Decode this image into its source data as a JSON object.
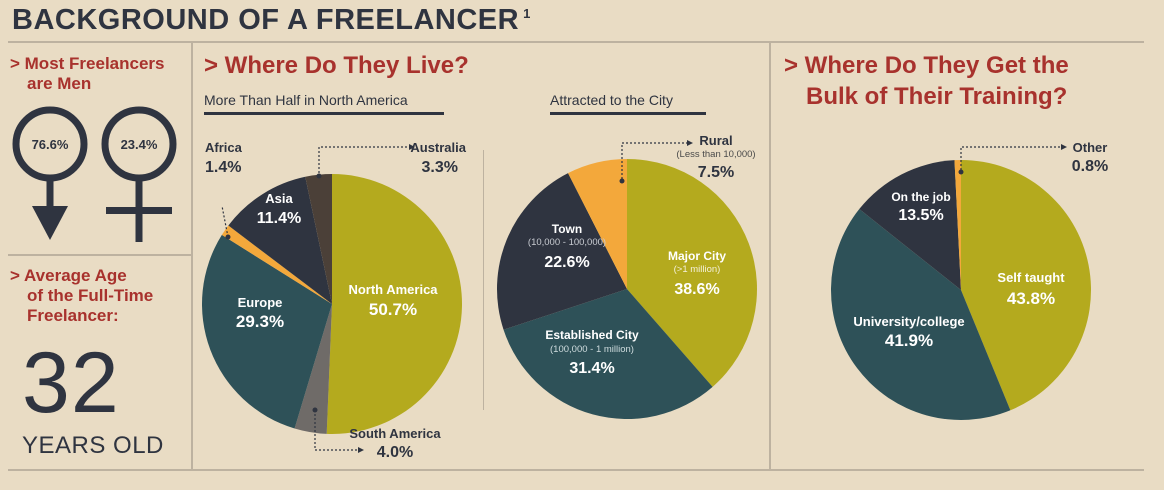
{
  "title": "BACKGROUND OF A FREELANCER",
  "title_footnote": "1",
  "gender": {
    "heading_line1": "> Most Freelancers",
    "heading_line2": "are Men",
    "male_percent": "76.6%",
    "female_percent": "23.4%",
    "male_icon": "male-symbol-icon",
    "female_icon": "female-symbol-icon"
  },
  "age": {
    "heading_line1": "> Average Age",
    "heading_line2": "of the Full-Time",
    "heading_line3": "Freelancer:",
    "value": "32",
    "unit": "YEARS OLD"
  },
  "where_live": {
    "heading": "> Where Do They Live?"
  },
  "training": {
    "heading_line1": "> Where Do They Get the",
    "heading_line2": "Bulk of Their Training?"
  },
  "colors": {
    "olive": "#b4aa1e",
    "teal": "#2e5158",
    "navy": "#2f3440",
    "orange": "#f3a83b",
    "brown": "#4b4038",
    "grey": "#6f6b68",
    "red": "#a8322d",
    "background": "#e9dcc4"
  },
  "chart_data": [
    {
      "type": "pie",
      "title": "More Than Half in North America",
      "slices": [
        {
          "label": "North America",
          "value": 50.7,
          "text": "50.7%",
          "color": "#b4aa1e"
        },
        {
          "label": "South America",
          "value": 4.0,
          "text": "4.0%",
          "color": "#6f6b68"
        },
        {
          "label": "Europe",
          "value": 29.3,
          "text": "29.3%",
          "color": "#2e5158"
        },
        {
          "label": "Africa",
          "value": 1.4,
          "text": "1.4%",
          "color": "#f3a83b"
        },
        {
          "label": "Asia",
          "value": 11.4,
          "text": "11.4%",
          "color": "#2f3440"
        },
        {
          "label": "Australia",
          "value": 3.3,
          "text": "3.3%",
          "color": "#4b4038"
        }
      ]
    },
    {
      "type": "pie",
      "title": "Attracted to the City",
      "slices": [
        {
          "label": "Major City",
          "note": "(>1 million)",
          "value": 38.6,
          "text": "38.6%",
          "color": "#b4aa1e"
        },
        {
          "label": "Established City",
          "note": "(100,000 - 1 million)",
          "value": 31.4,
          "text": "31.4%",
          "color": "#2e5158"
        },
        {
          "label": "Town",
          "note": "(10,000 - 100,000)",
          "value": 22.6,
          "text": "22.6%",
          "color": "#2f3440"
        },
        {
          "label": "Rural",
          "note": "(Less than 10,000)",
          "value": 7.5,
          "text": "7.5%",
          "color": "#f3a83b"
        }
      ]
    },
    {
      "type": "pie",
      "title": "",
      "slices": [
        {
          "label": "Self taught",
          "value": 43.8,
          "text": "43.8%",
          "color": "#b4aa1e"
        },
        {
          "label": "University/college",
          "value": 41.9,
          "text": "41.9%",
          "color": "#2e5158"
        },
        {
          "label": "On the job",
          "value": 13.5,
          "text": "13.5%",
          "color": "#2f3440"
        },
        {
          "label": "Other",
          "value": 0.8,
          "text": "0.8%",
          "color": "#f3a83b"
        }
      ]
    }
  ]
}
